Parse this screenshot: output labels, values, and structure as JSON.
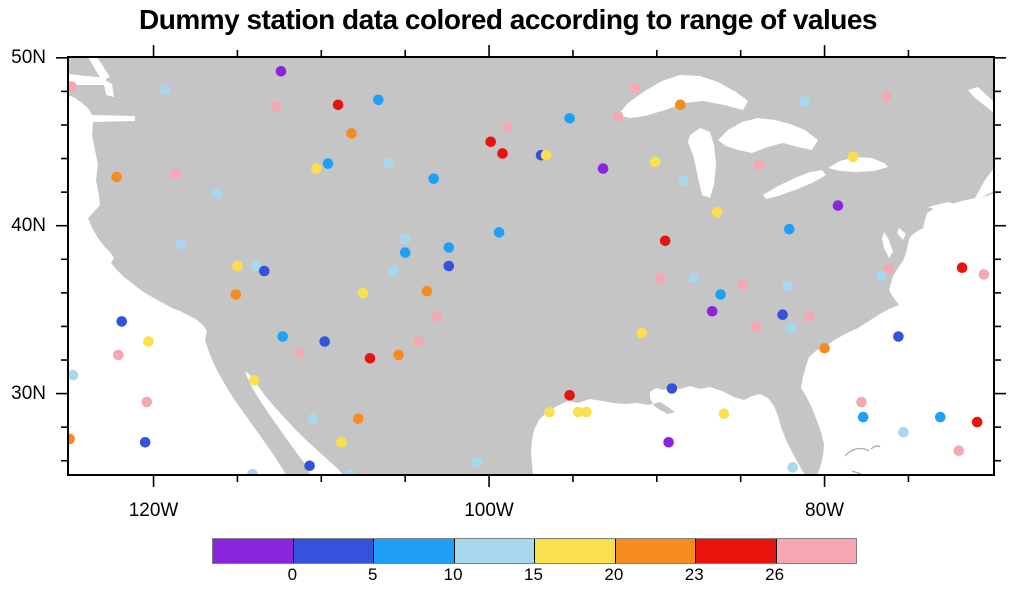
{
  "title": "Dummy station data colored according to range of values",
  "map": {
    "land_color": "#C5C5C5",
    "water_color": "#FFFFFF",
    "frame_color": "#000000",
    "region": "Continental United States"
  },
  "chart_data": {
    "type": "scatter",
    "projection": "cylindrical-equidistant lat/lon map",
    "title": "Dummy station data colored according to range of values",
    "map_extent": {
      "lon_min": -125.1,
      "lon_max": -69.9,
      "lat_min": 25.15,
      "lat_max": 50.05
    },
    "x_axis": {
      "major_ticks": [
        {
          "text": "120W",
          "lon": -120
        },
        {
          "text": "100W",
          "lon": -100
        },
        {
          "text": "80W",
          "lon": -80
        }
      ]
    },
    "y_axis": {
      "major_ticks": [
        {
          "text": "50N",
          "lat": 50
        },
        {
          "text": "40N",
          "lat": 40
        },
        {
          "text": "30N",
          "lat": 30
        }
      ]
    },
    "colorbar": {
      "boundary_labels": [
        "0",
        "5",
        "10",
        "15",
        "20",
        "23",
        "26"
      ],
      "bin_ranges": [
        "< 0",
        "0-5",
        "5-10",
        "10-15",
        "15-20",
        "20-23",
        "23-26",
        "> 26"
      ],
      "bin_colors": [
        "#8926DD",
        "#3552DC",
        "#1F9FF6",
        "#A8D8EE",
        "#FBE04E",
        "#F68C1E",
        "#E8130D",
        "#F5A8B1"
      ]
    },
    "stations_format": [
      "lon",
      "lat",
      "color_bin_index"
    ],
    "stations": [
      [
        -124.9,
        48.3,
        7
      ],
      [
        -119.3,
        48.1,
        3
      ],
      [
        -112.4,
        49.2,
        0
      ],
      [
        -112.7,
        47.1,
        7
      ],
      [
        -109.0,
        47.2,
        6
      ],
      [
        -106.6,
        47.5,
        2
      ],
      [
        -108.2,
        45.5,
        5
      ],
      [
        -98.9,
        45.9,
        7
      ],
      [
        -99.9,
        45.0,
        6
      ],
      [
        -99.2,
        44.3,
        6
      ],
      [
        -96.9,
        44.2,
        1
      ],
      [
        -96.6,
        44.2,
        4
      ],
      [
        -110.3,
        43.4,
        4
      ],
      [
        -109.6,
        43.7,
        2
      ],
      [
        -106.0,
        43.7,
        3
      ],
      [
        -103.3,
        42.8,
        2
      ],
      [
        -122.2,
        42.9,
        5
      ],
      [
        -118.7,
        43.1,
        7
      ],
      [
        -116.2,
        41.9,
        3
      ],
      [
        -118.4,
        38.9,
        3
      ],
      [
        -105.0,
        39.2,
        3
      ],
      [
        -105.0,
        38.4,
        2
      ],
      [
        -102.4,
        38.7,
        2
      ],
      [
        -102.4,
        37.6,
        1
      ],
      [
        -105.7,
        37.3,
        3
      ],
      [
        -99.4,
        39.6,
        2
      ],
      [
        -91.3,
        48.2,
        7
      ],
      [
        -88.6,
        47.2,
        5
      ],
      [
        -92.3,
        46.5,
        7
      ],
      [
        -95.2,
        46.4,
        2
      ],
      [
        -81.2,
        47.4,
        3
      ],
      [
        -76.3,
        47.7,
        7
      ],
      [
        -93.2,
        43.4,
        0
      ],
      [
        -90.1,
        43.8,
        4
      ],
      [
        -88.4,
        42.7,
        3
      ],
      [
        -83.9,
        43.6,
        7
      ],
      [
        -78.3,
        44.1,
        4
      ],
      [
        -79.2,
        41.2,
        0
      ],
      [
        -86.4,
        40.8,
        4
      ],
      [
        -82.1,
        39.8,
        2
      ],
      [
        -89.5,
        39.1,
        6
      ],
      [
        -115.0,
        37.6,
        4
      ],
      [
        -113.9,
        37.6,
        3
      ],
      [
        -113.4,
        37.3,
        1
      ],
      [
        -115.1,
        35.9,
        5
      ],
      [
        -107.5,
        36.0,
        4
      ],
      [
        -103.7,
        36.1,
        5
      ],
      [
        -103.1,
        34.6,
        7
      ],
      [
        -121.9,
        34.3,
        1
      ],
      [
        -120.3,
        33.1,
        4
      ],
      [
        -122.1,
        32.3,
        7
      ],
      [
        -112.3,
        33.4,
        2
      ],
      [
        -109.8,
        33.1,
        1
      ],
      [
        -111.3,
        32.4,
        7
      ],
      [
        -107.1,
        32.1,
        6
      ],
      [
        -105.4,
        32.3,
        5
      ],
      [
        -104.2,
        33.1,
        7
      ],
      [
        -124.8,
        31.1,
        3
      ],
      [
        -114.0,
        30.8,
        4
      ],
      [
        -120.4,
        29.5,
        7
      ],
      [
        -125.0,
        27.3,
        5
      ],
      [
        -120.5,
        27.1,
        1
      ],
      [
        -114.1,
        25.2,
        3
      ],
      [
        -110.7,
        25.7,
        1
      ],
      [
        -108.3,
        25.2,
        3
      ],
      [
        -110.5,
        28.5,
        3
      ],
      [
        -107.8,
        28.5,
        5
      ],
      [
        -108.8,
        27.1,
        4
      ],
      [
        -100.7,
        25.9,
        3
      ],
      [
        -89.8,
        36.9,
        7
      ],
      [
        -87.8,
        36.9,
        3
      ],
      [
        -84.9,
        36.5,
        7
      ],
      [
        -86.2,
        35.9,
        2
      ],
      [
        -82.2,
        36.4,
        3
      ],
      [
        -86.7,
        34.9,
        0
      ],
      [
        -82.5,
        34.7,
        1
      ],
      [
        -80.9,
        34.6,
        7
      ],
      [
        -84.1,
        34.0,
        7
      ],
      [
        -82.0,
        33.9,
        3
      ],
      [
        -90.9,
        33.6,
        4
      ],
      [
        -80.0,
        32.7,
        5
      ],
      [
        -75.6,
        33.4,
        1
      ],
      [
        -76.2,
        37.4,
        7
      ],
      [
        -76.6,
        37.0,
        3
      ],
      [
        -71.8,
        37.5,
        6
      ],
      [
        -70.5,
        37.1,
        7
      ],
      [
        -95.2,
        29.9,
        6
      ],
      [
        -96.4,
        28.9,
        4
      ],
      [
        -94.7,
        28.9,
        4
      ],
      [
        -94.2,
        28.9,
        4
      ],
      [
        -89.1,
        30.3,
        1
      ],
      [
        -86.0,
        28.8,
        4
      ],
      [
        -89.3,
        27.1,
        0
      ],
      [
        -81.9,
        25.6,
        3
      ],
      [
        -77.8,
        29.5,
        7
      ],
      [
        -77.7,
        28.6,
        2
      ],
      [
        -75.3,
        27.7,
        3
      ],
      [
        -73.1,
        28.6,
        2
      ],
      [
        -70.9,
        28.3,
        6
      ],
      [
        -72.0,
        26.6,
        7
      ]
    ]
  }
}
